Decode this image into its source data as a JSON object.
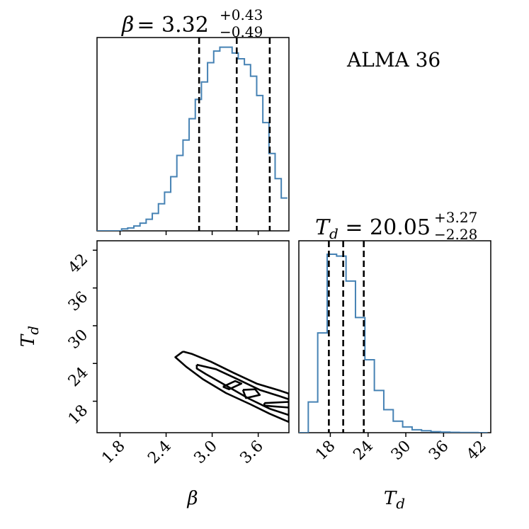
{
  "annotation": "ALMA 36",
  "chart_data": [
    {
      "type": "histogram",
      "panel": "beta-marginal",
      "title": {
        "symbol": "β",
        "value": "3.32",
        "upper": "+0.43",
        "lower": "−0.49"
      },
      "quantiles": [
        2.83,
        3.32,
        3.75
      ],
      "bin_edges": [
        1.5,
        1.58,
        1.66,
        1.74,
        1.82,
        1.9,
        1.98,
        2.06,
        2.14,
        2.22,
        2.3,
        2.38,
        2.46,
        2.54,
        2.62,
        2.7,
        2.78,
        2.86,
        2.94,
        3.02,
        3.1,
        3.18,
        3.26,
        3.34,
        3.42,
        3.5,
        3.58,
        3.66,
        3.74,
        3.82,
        3.9,
        3.98
      ],
      "counts": [
        0,
        0,
        0,
        0,
        1,
        1.5,
        2.5,
        4,
        6,
        9,
        14,
        20,
        28,
        39,
        47,
        58,
        68,
        77,
        87,
        93,
        95,
        95,
        92,
        89,
        86,
        80,
        70,
        56,
        40,
        27,
        17
      ],
      "ylim": [
        0,
        100
      ],
      "xlim": [
        1.5,
        4.0
      ],
      "color": "#4682b4"
    },
    {
      "type": "contour",
      "panel": "beta-Td-joint",
      "xlabel": "β",
      "ylabel": "T_d",
      "xlim": [
        1.5,
        4.0
      ],
      "ylim": [
        13.0,
        43.5
      ],
      "xticks": [
        "1.8",
        "2.4",
        "3.0",
        "3.6"
      ],
      "xtick_values": [
        1.8,
        2.4,
        3.0,
        3.6
      ],
      "yticks": [
        "18",
        "24",
        "30",
        "36",
        "42"
      ],
      "ytick_values": [
        18,
        24,
        30,
        36,
        42
      ],
      "contours": [
        {
          "level": "outer",
          "points": [
            [
              2.62,
              25.9
            ],
            [
              2.74,
              25.5
            ],
            [
              2.98,
              24.3
            ],
            [
              3.28,
              22.5
            ],
            [
              3.58,
              20.8
            ],
            [
              3.88,
              19.7
            ],
            [
              4.0,
              19.2
            ],
            [
              4.0,
              14.7
            ],
            [
              3.75,
              16.0
            ],
            [
              3.5,
              17.5
            ],
            [
              3.18,
              19.3
            ],
            [
              2.88,
              21.5
            ],
            [
              2.66,
              23.5
            ],
            [
              2.52,
              25.0
            ],
            [
              2.62,
              25.9
            ]
          ]
        },
        {
          "level": "middle",
          "points": [
            [
              2.8,
              23.8
            ],
            [
              3.05,
              23.1
            ],
            [
              3.35,
              21.4
            ],
            [
              3.62,
              19.8
            ],
            [
              3.88,
              18.8
            ],
            [
              4.0,
              18.3
            ],
            [
              4.0,
              15.8
            ],
            [
              3.75,
              16.8
            ],
            [
              3.48,
              18.4
            ],
            [
              3.18,
              20.5
            ],
            [
              2.92,
              22.3
            ],
            [
              2.8,
              23.2
            ],
            [
              2.8,
              23.8
            ]
          ]
        },
        {
          "level": "inner-1",
          "points": [
            [
              3.14,
              20.3
            ],
            [
              3.3,
              21.2
            ],
            [
              3.38,
              20.8
            ],
            [
              3.22,
              19.9
            ],
            [
              3.14,
              20.3
            ]
          ]
        },
        {
          "level": "inner-2",
          "points": [
            [
              3.4,
              19.8
            ],
            [
              3.56,
              19.9
            ],
            [
              3.62,
              19.0
            ],
            [
              3.44,
              18.5
            ],
            [
              3.4,
              19.8
            ]
          ]
        },
        {
          "level": "inner-3",
          "points": [
            [
              3.68,
              17.7
            ],
            [
              4.0,
              17.9
            ],
            [
              4.0,
              17.0
            ],
            [
              3.68,
              17.3
            ],
            [
              3.68,
              17.7
            ]
          ]
        }
      ],
      "color": "#000000"
    },
    {
      "type": "histogram",
      "panel": "Td-marginal",
      "title": {
        "symbol": "T_d",
        "value": "20.05",
        "upper": "+3.27",
        "lower": "−2.28"
      },
      "xlabel": "T_d",
      "quantiles": [
        17.77,
        20.05,
        23.32
      ],
      "bin_edges": [
        13.0,
        14.5,
        16.0,
        17.5,
        19.0,
        20.5,
        22.0,
        23.5,
        25.0,
        26.5,
        28.0,
        29.5,
        31.0,
        32.5,
        34.0,
        35.5,
        37.0,
        38.5,
        40.0,
        41.5,
        43.0
      ],
      "counts": [
        0,
        16,
        52,
        93,
        92,
        79,
        60,
        38,
        22,
        12,
        6,
        3,
        1.5,
        1,
        0.5,
        0.3,
        0.2,
        0.1,
        0.1,
        0
      ],
      "xlim": [
        13.0,
        43.5
      ],
      "ylim": [
        0,
        100
      ],
      "xticks": [
        "18",
        "24",
        "30",
        "36",
        "42"
      ],
      "xtick_values": [
        18,
        24,
        30,
        36,
        42
      ],
      "color": "#4682b4"
    }
  ]
}
